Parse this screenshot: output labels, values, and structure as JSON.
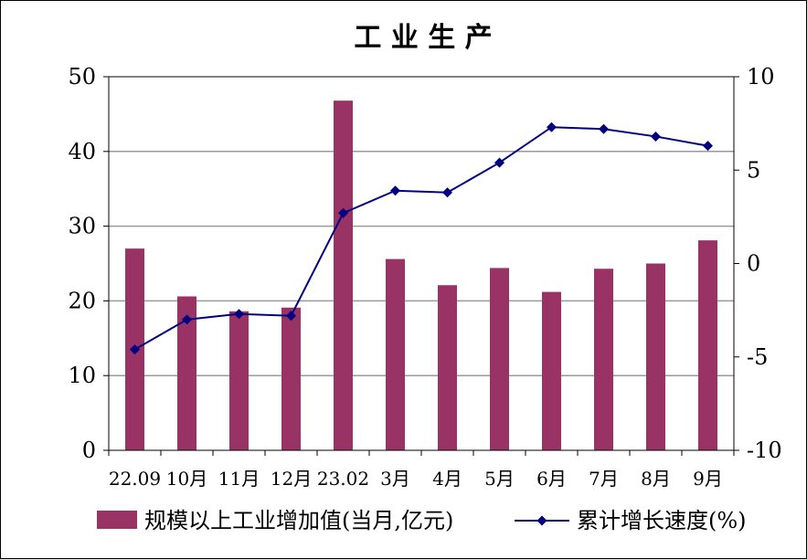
{
  "chart_data": {
    "type": "bar",
    "title": "工 业 生 产",
    "categories": [
      "22.09",
      "10月",
      "11月",
      "12月",
      "23.02",
      "3月",
      "4月",
      "5月",
      "6月",
      "7月",
      "8月",
      "9月"
    ],
    "series": [
      {
        "name": "规模以上工业增加值(当月,亿元)",
        "type": "bar",
        "axis": "left",
        "color": "#993366",
        "values": [
          27.0,
          20.6,
          18.6,
          19.1,
          46.8,
          25.6,
          22.1,
          24.4,
          21.2,
          24.3,
          25.0,
          28.1
        ]
      },
      {
        "name": "累计增长速度(%)",
        "type": "line",
        "axis": "right",
        "color": "#000080",
        "values": [
          -4.6,
          -3.0,
          -2.7,
          -2.8,
          2.7,
          3.9,
          3.8,
          5.4,
          7.3,
          7.2,
          6.8,
          6.3
        ]
      }
    ],
    "y_left": {
      "min": 0,
      "max": 50,
      "ticks": [
        0,
        10,
        20,
        30,
        40,
        50
      ]
    },
    "y_right": {
      "min": -10,
      "max": 10,
      "ticks": [
        -10,
        -5,
        0,
        5,
        10
      ]
    },
    "grid": true,
    "legend_position": "bottom"
  }
}
